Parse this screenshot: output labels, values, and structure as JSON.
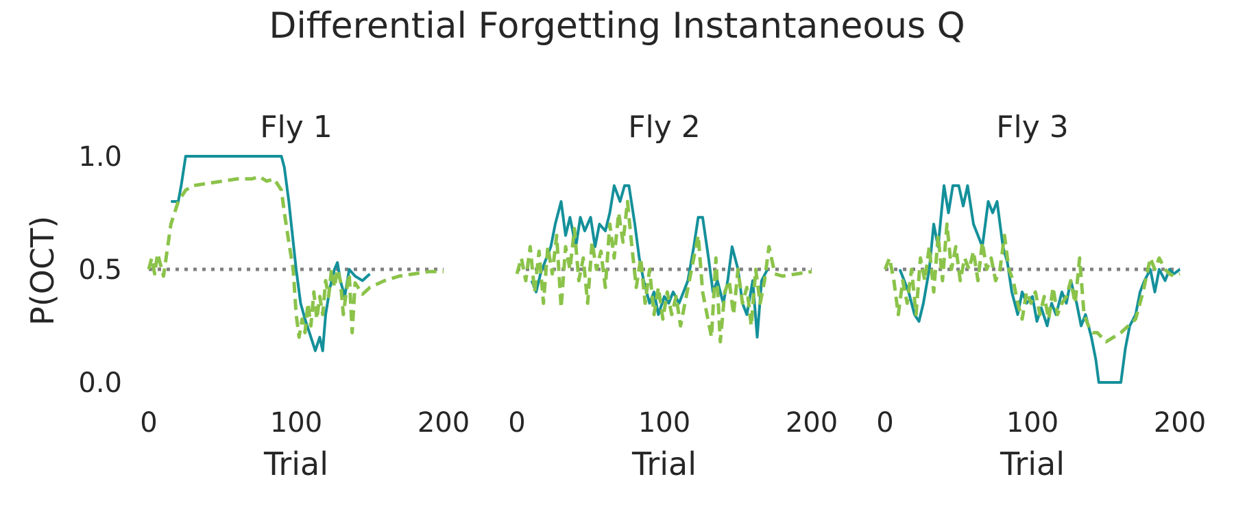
{
  "chart_data": {
    "type": "line",
    "title": "Differential Forgetting Instantaneous Q",
    "ylabel": "P(OCT)",
    "xlabel": "Trial",
    "xlim": [
      0,
      200
    ],
    "ylim": [
      0.0,
      1.0
    ],
    "xticks": [
      "0",
      "100",
      "200"
    ],
    "yticks": [
      "0.0",
      "0.5",
      "1.0"
    ],
    "grid": false,
    "reference_line": {
      "y": 0.5,
      "style": "dotted",
      "color": "#808080"
    },
    "colors": {
      "series_a": "#14909a",
      "series_b": "#8bc34a"
    },
    "panels": [
      {
        "title": "Fly 1",
        "series": [
          {
            "style": "solid",
            "color": "#14909a",
            "x": [
              15,
              20,
              22,
              25,
              30,
              40,
              50,
              60,
              70,
              80,
              85,
              90,
              92,
              95,
              98,
              100,
              103,
              106,
              110,
              113,
              116,
              118,
              120,
              123,
              126,
              128,
              130,
              133,
              136,
              140,
              145,
              150
            ],
            "y": [
              0.8,
              0.8,
              0.87,
              1.0,
              1.0,
              1.0,
              1.0,
              1.0,
              1.0,
              1.0,
              1.0,
              1.0,
              0.95,
              0.8,
              0.62,
              0.5,
              0.35,
              0.28,
              0.2,
              0.14,
              0.2,
              0.14,
              0.3,
              0.42,
              0.5,
              0.53,
              0.45,
              0.38,
              0.5,
              0.47,
              0.45,
              0.48
            ]
          },
          {
            "style": "dashed",
            "color": "#8bc34a",
            "x": [
              0,
              2,
              4,
              6,
              8,
              10,
              15,
              20,
              25,
              30,
              40,
              50,
              60,
              70,
              75,
              80,
              85,
              88,
              90,
              92,
              95,
              98,
              100,
              102,
              104,
              106,
              108,
              110,
              112,
              114,
              116,
              118,
              120,
              122,
              124,
              126,
              128,
              130,
              132,
              134,
              136,
              138,
              140,
              145,
              150,
              160,
              170,
              180,
              190,
              200
            ],
            "y": [
              0.5,
              0.55,
              0.48,
              0.57,
              0.52,
              0.47,
              0.7,
              0.8,
              0.85,
              0.87,
              0.88,
              0.89,
              0.9,
              0.9,
              0.91,
              0.89,
              0.9,
              0.87,
              0.85,
              0.75,
              0.62,
              0.5,
              0.3,
              0.2,
              0.28,
              0.22,
              0.35,
              0.25,
              0.4,
              0.28,
              0.38,
              0.3,
              0.45,
              0.38,
              0.5,
              0.42,
              0.5,
              0.45,
              0.3,
              0.4,
              0.48,
              0.22,
              0.44,
              0.39,
              0.42,
              0.45,
              0.47,
              0.48,
              0.49,
              0.49
            ]
          }
        ]
      },
      {
        "title": "Fly 2",
        "series": [
          {
            "style": "solid",
            "color": "#14909a",
            "x": [
              10,
              13,
              16,
              20,
              23,
              26,
              30,
              33,
              36,
              40,
              43,
              46,
              50,
              53,
              56,
              60,
              63,
              66,
              70,
              73,
              76,
              80,
              83,
              86,
              90,
              93,
              96,
              100,
              103,
              106,
              110,
              113,
              116,
              120,
              123,
              126,
              130,
              133,
              136,
              140,
              143,
              146,
              150,
              153,
              156,
              160,
              163,
              166,
              170
            ],
            "y": [
              0.45,
              0.4,
              0.48,
              0.55,
              0.6,
              0.7,
              0.8,
              0.65,
              0.73,
              0.6,
              0.73,
              0.67,
              0.73,
              0.6,
              0.7,
              0.67,
              0.75,
              0.87,
              0.8,
              0.87,
              0.87,
              0.7,
              0.55,
              0.45,
              0.35,
              0.4,
              0.3,
              0.38,
              0.35,
              0.4,
              0.35,
              0.4,
              0.45,
              0.6,
              0.73,
              0.73,
              0.55,
              0.4,
              0.45,
              0.35,
              0.45,
              0.6,
              0.5,
              0.35,
              0.3,
              0.45,
              0.2,
              0.45,
              0.5
            ]
          },
          {
            "style": "dashed",
            "color": "#8bc34a",
            "x": [
              0,
              3,
              6,
              9,
              12,
              15,
              18,
              21,
              24,
              27,
              30,
              33,
              36,
              39,
              42,
              45,
              48,
              51,
              54,
              57,
              60,
              63,
              66,
              69,
              72,
              75,
              78,
              81,
              84,
              87,
              90,
              93,
              96,
              99,
              102,
              105,
              108,
              111,
              114,
              117,
              120,
              123,
              126,
              129,
              132,
              135,
              138,
              141,
              144,
              147,
              150,
              153,
              156,
              159,
              162,
              165,
              168,
              171,
              175,
              180,
              190,
              200
            ],
            "y": [
              0.48,
              0.55,
              0.45,
              0.6,
              0.4,
              0.58,
              0.35,
              0.6,
              0.48,
              0.65,
              0.33,
              0.6,
              0.5,
              0.68,
              0.45,
              0.55,
              0.35,
              0.62,
              0.5,
              0.58,
              0.42,
              0.7,
              0.55,
              0.75,
              0.62,
              0.8,
              0.6,
              0.42,
              0.55,
              0.35,
              0.5,
              0.3,
              0.42,
              0.28,
              0.4,
              0.3,
              0.38,
              0.25,
              0.35,
              0.45,
              0.55,
              0.65,
              0.4,
              0.3,
              0.2,
              0.55,
              0.18,
              0.4,
              0.45,
              0.3,
              0.5,
              0.35,
              0.42,
              0.25,
              0.5,
              0.35,
              0.45,
              0.6,
              0.48,
              0.47,
              0.48,
              0.49
            ]
          }
        ]
      },
      {
        "title": "Fly 3",
        "series": [
          {
            "style": "solid",
            "color": "#14909a",
            "x": [
              10,
              13,
              16,
              20,
              23,
              26,
              30,
              33,
              36,
              40,
              43,
              46,
              50,
              53,
              56,
              60,
              63,
              66,
              70,
              73,
              76,
              80,
              83,
              86,
              90,
              93,
              96,
              100,
              103,
              106,
              110,
              113,
              116,
              120,
              123,
              126,
              130,
              133,
              136,
              140,
              143,
              145,
              150,
              155,
              160,
              163,
              166,
              170,
              173,
              176,
              180,
              183,
              186,
              190,
              193,
              196,
              200
            ],
            "y": [
              0.5,
              0.45,
              0.4,
              0.3,
              0.27,
              0.35,
              0.5,
              0.7,
              0.6,
              0.87,
              0.75,
              0.87,
              0.87,
              0.78,
              0.87,
              0.7,
              0.65,
              0.6,
              0.8,
              0.75,
              0.8,
              0.6,
              0.53,
              0.4,
              0.3,
              0.4,
              0.35,
              0.38,
              0.27,
              0.33,
              0.25,
              0.35,
              0.3,
              0.4,
              0.35,
              0.45,
              0.35,
              0.25,
              0.3,
              0.2,
              0.1,
              0.0,
              0.0,
              0.0,
              0.0,
              0.15,
              0.25,
              0.3,
              0.4,
              0.45,
              0.5,
              0.4,
              0.5,
              0.45,
              0.5,
              0.48,
              0.5
            ]
          },
          {
            "style": "dashed",
            "color": "#8bc34a",
            "x": [
              0,
              3,
              6,
              9,
              12,
              15,
              18,
              21,
              24,
              27,
              30,
              33,
              36,
              39,
              42,
              45,
              48,
              51,
              54,
              57,
              60,
              63,
              66,
              69,
              72,
              75,
              78,
              81,
              84,
              87,
              90,
              93,
              96,
              99,
              102,
              105,
              108,
              111,
              114,
              117,
              120,
              123,
              126,
              129,
              132,
              135,
              138,
              141,
              144,
              147,
              150,
              155,
              160,
              165,
              170,
              175,
              180,
              183,
              186,
              190,
              193,
              196,
              200
            ],
            "y": [
              0.5,
              0.55,
              0.45,
              0.3,
              0.45,
              0.35,
              0.5,
              0.3,
              0.55,
              0.45,
              0.6,
              0.4,
              0.65,
              0.45,
              0.7,
              0.5,
              0.6,
              0.45,
              0.55,
              0.5,
              0.58,
              0.45,
              0.62,
              0.5,
              0.55,
              0.45,
              0.5,
              0.65,
              0.5,
              0.45,
              0.35,
              0.28,
              0.4,
              0.35,
              0.4,
              0.3,
              0.38,
              0.28,
              0.42,
              0.3,
              0.35,
              0.38,
              0.45,
              0.35,
              0.55,
              0.3,
              0.25,
              0.22,
              0.22,
              0.2,
              0.18,
              0.2,
              0.22,
              0.25,
              0.28,
              0.4,
              0.55,
              0.5,
              0.55,
              0.5,
              0.48,
              0.47,
              0.48
            ]
          }
        ]
      }
    ]
  }
}
